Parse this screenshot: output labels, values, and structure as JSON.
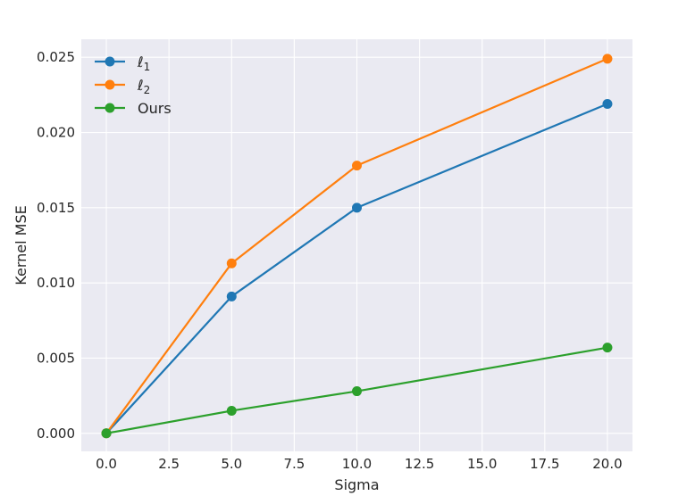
{
  "chart_data": {
    "type": "line",
    "title": "",
    "xlabel": "Sigma",
    "ylabel": "Kernel MSE",
    "x": [
      0,
      5,
      10,
      20
    ],
    "xlim": [
      -1,
      21
    ],
    "ylim": [
      -0.0012,
      0.0262
    ],
    "xticks": [
      0.0,
      2.5,
      5.0,
      7.5,
      10.0,
      12.5,
      15.0,
      17.5,
      20.0
    ],
    "xtick_labels": [
      "0.0",
      "2.5",
      "5.0",
      "7.5",
      "10.0",
      "12.5",
      "15.0",
      "17.5",
      "20.0"
    ],
    "yticks": [
      0.0,
      0.005,
      0.01,
      0.015,
      0.02,
      0.025
    ],
    "ytick_labels": [
      "0.000",
      "0.005",
      "0.010",
      "0.015",
      "0.020",
      "0.025"
    ],
    "grid": true,
    "legend_position": "upper-left",
    "series": [
      {
        "name": "ℓ",
        "subscript": "1",
        "color": "#1f77b4",
        "values": [
          0.0,
          0.0091,
          0.015,
          0.0219
        ]
      },
      {
        "name": "ℓ",
        "subscript": "2",
        "color": "#ff7f0e",
        "values": [
          0.0,
          0.0113,
          0.0178,
          0.0249
        ]
      },
      {
        "name": "Ours",
        "subscript": "",
        "color": "#2ca02c",
        "values": [
          0.0,
          0.0015,
          0.0028,
          0.0057
        ]
      }
    ],
    "style": {
      "background": "#eaeaf2",
      "grid_color": "#ffffff"
    }
  }
}
